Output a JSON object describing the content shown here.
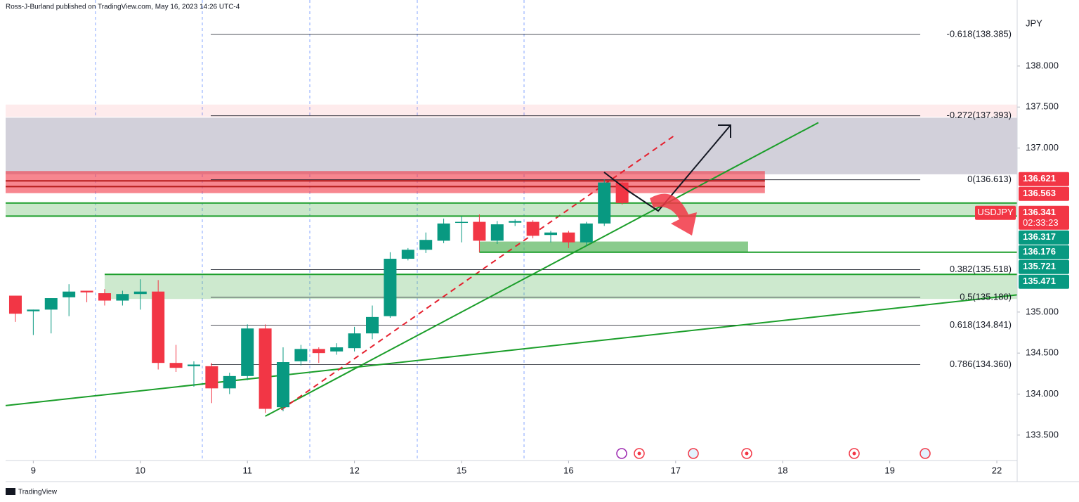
{
  "header": "Ross-J-Burland published on TradingView.com, May 16, 2023 14:26 UTC-4",
  "footer": "TradingView",
  "chart_data": {
    "type": "candlestick",
    "symbol": "USDJPY",
    "currency": "JPY",
    "countdown": "02:33:23",
    "up_color": "#089981",
    "down_color": "#f23645",
    "x": [
      0,
      1,
      2,
      3,
      4,
      5,
      6,
      7,
      8,
      9,
      10,
      11,
      12,
      13,
      14,
      15,
      16,
      17,
      18,
      19,
      20,
      21,
      22,
      23,
      24,
      25,
      26,
      27,
      28,
      29,
      30,
      31,
      32,
      33,
      34
    ],
    "open": [
      135.2,
      135.01,
      135.03,
      135.18,
      135.26,
      135.23,
      135.14,
      135.22,
      135.25,
      134.38,
      134.34,
      134.34,
      134.07,
      134.22,
      134.8,
      133.84,
      134.4,
      134.55,
      134.52,
      134.56,
      134.74,
      134.95,
      135.65,
      135.76,
      135.87,
      136.09,
      136.1,
      135.87,
      136.09,
      136.1,
      135.94,
      135.97,
      135.85,
      136.08,
      136.58
    ],
    "high": [
      135.2,
      135.03,
      135.17,
      135.34,
      135.26,
      135.28,
      135.26,
      135.4,
      135.39,
      134.6,
      134.4,
      134.38,
      134.26,
      134.85,
      134.85,
      134.57,
      134.6,
      134.57,
      134.62,
      134.82,
      135.08,
      135.73,
      135.78,
      135.97,
      136.14,
      136.17,
      136.19,
      136.11,
      136.13,
      136.12,
      135.99,
      135.99,
      136.1,
      136.62,
      136.6
    ],
    "low": [
      134.88,
      134.72,
      134.74,
      134.95,
      135.12,
      135.08,
      135.08,
      135.03,
      134.3,
      134.27,
      134.09,
      133.89,
      134.0,
      134.17,
      133.77,
      133.79,
      134.35,
      134.38,
      134.48,
      134.52,
      134.67,
      134.93,
      135.63,
      135.72,
      135.84,
      135.85,
      135.73,
      135.83,
      136.05,
      135.9,
      135.85,
      135.78,
      135.8,
      136.05,
      136.31
    ],
    "close": [
      134.98,
      135.03,
      135.17,
      135.25,
      135.24,
      135.14,
      135.22,
      135.25,
      134.38,
      134.32,
      134.36,
      134.07,
      134.22,
      134.8,
      133.82,
      134.39,
      134.55,
      134.5,
      134.57,
      134.74,
      134.94,
      135.65,
      135.76,
      135.88,
      136.08,
      136.1,
      135.87,
      136.07,
      136.11,
      135.93,
      135.97,
      135.85,
      136.08,
      136.58,
      136.33
    ],
    "xlim": [
      -0.55,
      56.14
    ],
    "ylim": [
      133.19,
      138.805
    ],
    "xticks": [
      {
        "value": 1,
        "label": "9"
      },
      {
        "value": 7,
        "label": "10"
      },
      {
        "value": 13,
        "label": "11"
      },
      {
        "value": 19,
        "label": "12"
      },
      {
        "value": 25,
        "label": "15"
      },
      {
        "value": 31,
        "label": "16"
      },
      {
        "value": 37,
        "label": "17"
      },
      {
        "value": 43,
        "label": "18"
      },
      {
        "value": 49,
        "label": "19"
      },
      {
        "value": 55,
        "label": "22"
      }
    ],
    "yticks": [
      {
        "value": 138,
        "label": "138.000"
      },
      {
        "value": 137.5,
        "label": "137.500"
      },
      {
        "value": 137,
        "label": "137.000"
      },
      {
        "value": 135,
        "label": "135.000"
      },
      {
        "value": 134.5,
        "label": "134.500"
      },
      {
        "value": 134,
        "label": "134.000"
      },
      {
        "value": 133.5,
        "label": "133.500"
      }
    ],
    "fib_levels": [
      {
        "value": 138.385,
        "label": "-0.618(138.385)"
      },
      {
        "value": 137.393,
        "label": "-0.272(137.393)"
      },
      {
        "value": 136.613,
        "label": "0(136.613)"
      },
      {
        "value": 135.518,
        "label": "0.382(135.518)"
      },
      {
        "value": 135.18,
        "label": "0.5(135.180)"
      },
      {
        "value": 134.841,
        "label": "0.618(134.841)"
      },
      {
        "value": 134.36,
        "label": "0.786(134.360)"
      }
    ],
    "price_labels": [
      {
        "value": 136.621,
        "color": "#f23645"
      },
      {
        "value": 136.563,
        "color": "#f23645"
      },
      {
        "value": 136.341,
        "color": "#f23645"
      },
      {
        "value": 136.317,
        "color": "#089981"
      },
      {
        "value": 136.176,
        "color": "#089981"
      },
      {
        "value": 135.721,
        "color": "#089981"
      },
      {
        "value": 135.471,
        "color": "#089981"
      }
    ],
    "zones": [
      {
        "x": [
          -0.55,
          56.14
        ],
        "y": [
          137.38,
          137.53
        ],
        "color": "rgba(242,54,69,0.1)"
      },
      {
        "x": [
          -0.55,
          56.14
        ],
        "y": [
          136.68,
          137.37
        ],
        "color": "#d2d0da"
      },
      {
        "x": [
          -0.55,
          42.0
        ],
        "y": [
          136.45,
          136.72
        ],
        "color": "rgba(242,54,69,0.6)"
      },
      {
        "x": [
          -0.55,
          56.14
        ],
        "y": [
          136.17,
          136.33
        ],
        "color": "rgba(76,175,80,0.3)"
      },
      {
        "x": [
          5.0,
          56.14
        ],
        "y": [
          135.16,
          135.46
        ],
        "color": "rgba(76,175,80,0.28)"
      },
      {
        "x": [
          26.0,
          41.06
        ],
        "y": [
          135.73,
          135.86
        ],
        "color": "rgba(76,175,80,0.65)"
      }
    ],
    "lines": [
      {
        "x": [
          -0.55,
          56.14
        ],
        "y": [
          133.86,
          135.21
        ],
        "color": "#1b9e2a",
        "dashed": false
      },
      {
        "x": [
          14.0,
          45.0
        ],
        "y": [
          133.73,
          137.31
        ],
        "color": "#1b9e2a",
        "dashed": false
      },
      {
        "x": [
          14.9,
          37.05
        ],
        "y": [
          133.81,
          137.17
        ],
        "color": "#e5202e",
        "dashed": true
      },
      {
        "x": [
          26.0,
          56.14
        ],
        "y": [
          135.73,
          135.73
        ],
        "color": "#1b9e2a",
        "dashed": false
      },
      {
        "x": [
          5.0,
          56.14
        ],
        "y": [
          135.46,
          135.46
        ],
        "color": "#1b9e2a",
        "dashed": false
      },
      {
        "x": [
          -0.55,
          56.14
        ],
        "y": [
          136.33,
          136.33
        ],
        "color": "#1b9e2a",
        "dashed": false
      },
      {
        "x": [
          -0.55,
          56.14
        ],
        "y": [
          136.17,
          136.17
        ],
        "color": "#1b9e2a",
        "dashed": false
      },
      {
        "x": [
          -0.55,
          42.0
        ],
        "y": [
          136.6,
          136.6
        ],
        "color": "#b71c1c",
        "dashed": false
      },
      {
        "x": [
          -0.55,
          42.0
        ],
        "y": [
          136.53,
          136.53
        ],
        "color": "#b71c1c",
        "dashed": false
      }
    ]
  }
}
